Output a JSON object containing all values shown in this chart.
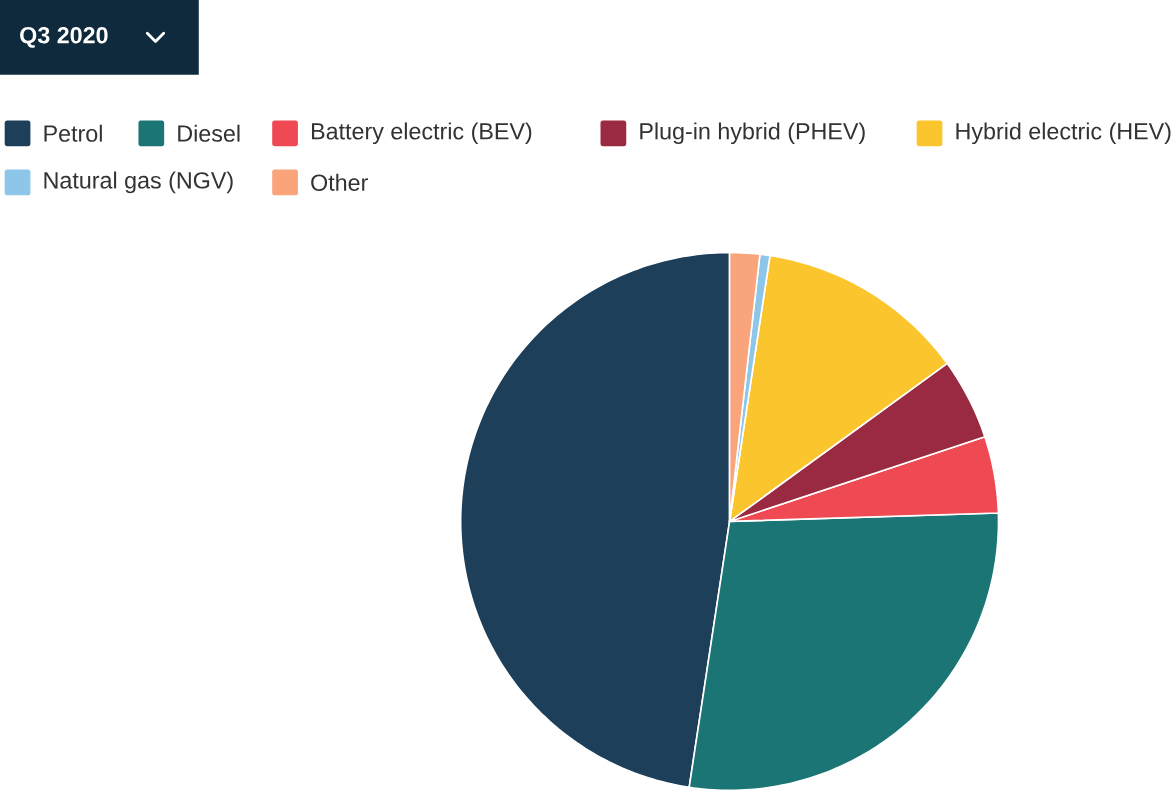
{
  "chart_data": {
    "type": "pie",
    "title": "Q3 2020",
    "categories": [
      "Petrol",
      "Diesel",
      "Battery electric (BEV)",
      "Plug-in hybrid (PHEV)",
      "Hybrid electric (HEV)",
      "Natural gas (NGV)",
      "Other"
    ],
    "values": [
      47.6,
      27.9,
      4.6,
      4.9,
      12.6,
      0.6,
      1.8
    ],
    "colors": [
      "#1e3f5a",
      "#1b7574",
      "#ef4a54",
      "#9a2a42",
      "#fbc52e",
      "#8ec6ea",
      "#f9a47a"
    ],
    "legend": "top left"
  }
}
